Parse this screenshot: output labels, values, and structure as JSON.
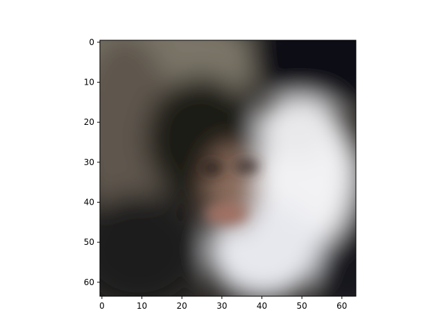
{
  "chart_data": {
    "type": "heatmap",
    "title": "",
    "xlabel": "",
    "ylabel": "",
    "xlim": [
      0,
      63
    ],
    "ylim": [
      63,
      0
    ],
    "x_ticks": [
      "0",
      "10",
      "20",
      "30",
      "40",
      "50",
      "60"
    ],
    "y_ticks": [
      "0",
      "10",
      "20",
      "30",
      "40",
      "50",
      "60"
    ],
    "image_size": [
      64,
      64
    ],
    "grid": false,
    "colors": {
      "background": "#ffffff",
      "axis": "#000000"
    }
  }
}
